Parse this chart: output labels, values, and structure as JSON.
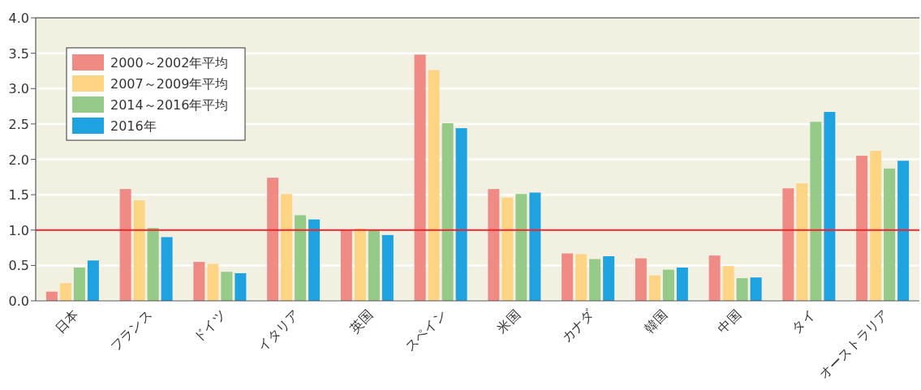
{
  "chart_data": {
    "type": "bar",
    "categories": [
      "日本",
      "フランス",
      "ドイツ",
      "イタリア",
      "英国",
      "スペイン",
      "米国",
      "カナダ",
      "韓国",
      "中国",
      "タイ",
      "オーストラリア"
    ],
    "series": [
      {
        "name": "2000～2002年平均",
        "color": "#f08a84",
        "values": [
          0.13,
          1.58,
          0.55,
          1.74,
          1.0,
          3.48,
          1.58,
          0.67,
          0.6,
          0.64,
          1.59,
          2.05
        ]
      },
      {
        "name": "2007～2009年平均",
        "color": "#fdd484",
        "values": [
          0.25,
          1.42,
          0.52,
          1.51,
          1.02,
          3.26,
          1.46,
          0.66,
          0.36,
          0.49,
          1.66,
          2.12
        ]
      },
      {
        "name": "2014～2016年平均",
        "color": "#95ca88",
        "values": [
          0.47,
          1.03,
          0.41,
          1.21,
          1.0,
          2.51,
          1.51,
          0.59,
          0.44,
          0.32,
          2.53,
          1.87
        ]
      },
      {
        "name": "2016年",
        "color": "#1ea3e0",
        "values": [
          0.57,
          0.9,
          0.39,
          1.15,
          0.93,
          2.44,
          1.53,
          0.63,
          0.47,
          0.33,
          2.67,
          1.98
        ]
      }
    ],
    "ylim": [
      0,
      4
    ],
    "yticks": [
      {
        "value": 0,
        "label": "0.0"
      },
      {
        "value": 0.5,
        "label": "0.5"
      },
      {
        "value": 1,
        "label": "1.0"
      },
      {
        "value": 1.5,
        "label": "1.5"
      },
      {
        "value": 2,
        "label": "2.0"
      },
      {
        "value": 2.5,
        "label": "2.5"
      },
      {
        "value": 3,
        "label": "3.0"
      },
      {
        "value": 3.5,
        "label": "3.5"
      },
      {
        "value": 4,
        "label": "4.0"
      }
    ],
    "grid": "y",
    "legend": "top left",
    "ref_lines": [
      {
        "axis": "y",
        "value": 1,
        "color": "#e8262b"
      }
    ]
  }
}
